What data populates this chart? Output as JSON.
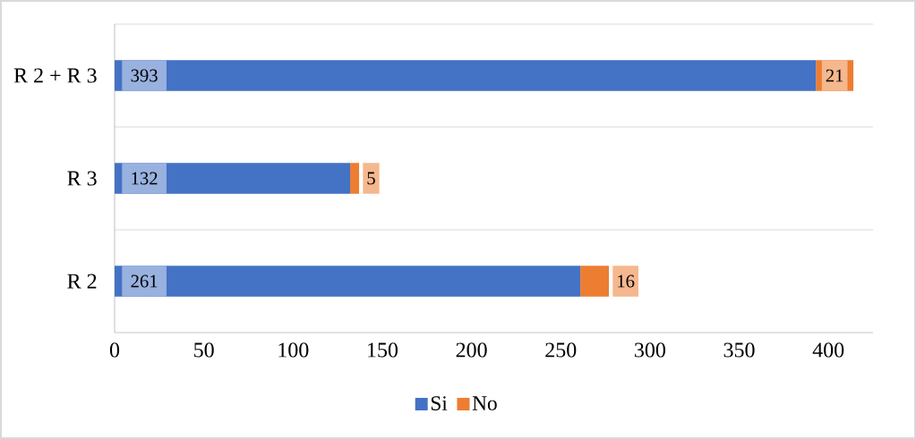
{
  "chart_data": {
    "type": "bar",
    "orientation": "horizontal",
    "stacked": true,
    "categories": [
      "R 2 + R 3",
      "R 3",
      "R 2"
    ],
    "series": [
      {
        "name": "Si",
        "color": "#4472c4",
        "values": [
          393,
          132,
          261
        ]
      },
      {
        "name": "No",
        "color": "#ed7d31",
        "values": [
          21,
          5,
          16
        ]
      }
    ],
    "xlim": [
      0,
      425
    ],
    "xticks": [
      0,
      50,
      100,
      150,
      200,
      250,
      300,
      350,
      400
    ],
    "grid": "y",
    "legend": "bottom",
    "data_labels": true
  }
}
